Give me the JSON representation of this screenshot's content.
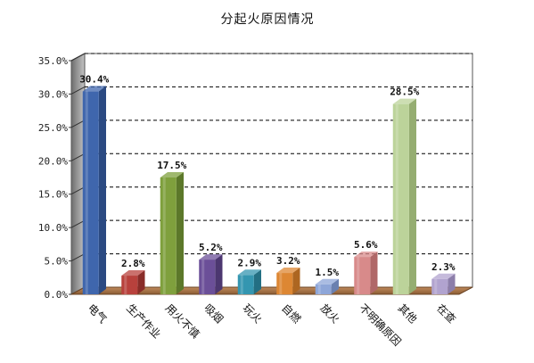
{
  "chart_data": {
    "type": "bar",
    "title": "分起火原因情况",
    "categories": [
      "电气",
      "生产作业",
      "用火不慎",
      "吸烟",
      "玩火",
      "自燃",
      "放火",
      "不明确原因",
      "其他",
      "在查"
    ],
    "values": [
      30.4,
      2.8,
      17.5,
      5.2,
      2.9,
      3.2,
      1.5,
      5.6,
      28.5,
      2.3
    ],
    "data_labels": [
      "30.4%",
      "2.8%",
      "17.5%",
      "5.2%",
      "2.9%",
      "3.2%",
      "1.5%",
      "5.6%",
      "28.5%",
      "2.3%"
    ],
    "ylim": [
      0,
      35
    ],
    "yticks": [
      "0.0%",
      "5.0%",
      "10.0%",
      "15.0%",
      "20.0%",
      "25.0%",
      "30.0%",
      "35.0%"
    ],
    "xlabel": "",
    "ylabel": "",
    "grid": "horizontal dashed",
    "colors": [
      "#3f66ad",
      "#b8413c",
      "#7fa03d",
      "#6b4f98",
      "#3496b0",
      "#dd8733",
      "#8ea6d8",
      "#d88a8a",
      "#bcd39a",
      "#b1a3cf"
    ],
    "side_colors": [
      "#2b4a82",
      "#892c28",
      "#5c782a",
      "#4c3770",
      "#236f83",
      "#ad6621",
      "#6a80b0",
      "#b06868",
      "#95ad71",
      "#8c7eaa"
    ]
  }
}
